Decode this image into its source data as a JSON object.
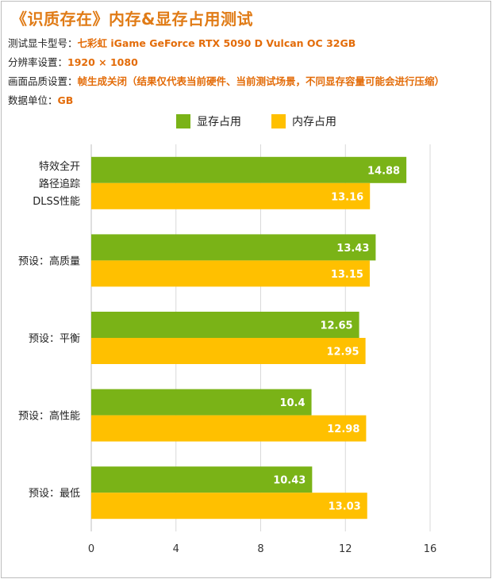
{
  "header": {
    "title": "《识质存在》内存&显存占用测试",
    "info": [
      {
        "label": "测试显卡型号：",
        "value": "七彩虹 iGame GeForce RTX 5090 D Vulcan OC 32GB"
      },
      {
        "label": "分辨率设置：",
        "value": "1920 × 1080"
      },
      {
        "label": "画面品质设置：",
        "value": "帧生成关闭（结果仅代表当前硬件、当前测试场景，不同显存容量可能会进行压缩）"
      },
      {
        "label": "数据单位：",
        "value": "GB"
      }
    ]
  },
  "colors": {
    "vram": "#7ab317",
    "ram": "#ffc000",
    "title": "#e07b16",
    "value_text": "#ffffff",
    "grid": "#d9d9d9"
  },
  "chart_data": {
    "type": "bar",
    "orientation": "horizontal",
    "categories": [
      [
        "特效全开",
        "路径追踪",
        "DLSS性能"
      ],
      [
        "预设：高质量"
      ],
      [
        "预设：平衡"
      ],
      [
        "预设：高性能"
      ],
      [
        "预设：最低"
      ]
    ],
    "series": [
      {
        "name": "显存占用",
        "values": [
          14.88,
          13.43,
          12.65,
          10.4,
          10.43
        ],
        "labels": [
          "14.88",
          "13.43",
          "12.65",
          "10.4",
          "10.43"
        ]
      },
      {
        "name": "内存占用",
        "values": [
          13.16,
          13.15,
          12.95,
          12.98,
          13.03
        ],
        "labels": [
          "13.16",
          "13.15",
          "12.95",
          "12.98",
          "13.03"
        ]
      }
    ],
    "xlim": [
      0,
      16
    ],
    "xticks": [
      "0",
      "4",
      "8",
      "12",
      "16"
    ],
    "xtick_values": [
      0,
      4,
      8,
      12,
      16
    ],
    "grid": true,
    "legend_position": "top"
  }
}
